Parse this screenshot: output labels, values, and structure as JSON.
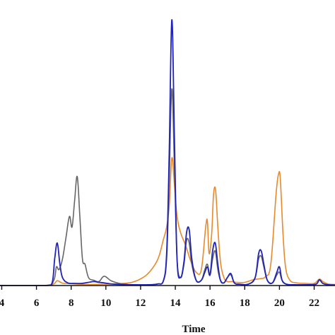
{
  "chart_data": {
    "type": "line",
    "xlabel": "Time",
    "ylabel": "",
    "xlim": [
      3.9,
      23.2
    ],
    "ylim": [
      0,
      100
    ],
    "xticks": [
      4,
      6,
      8,
      10,
      12,
      14,
      16,
      18,
      20,
      22
    ],
    "tick_labels": [
      "4",
      "6",
      "8",
      "10",
      "12",
      "14",
      "16",
      "18",
      "20",
      "22"
    ],
    "grid": false,
    "legend": "none",
    "series": [
      {
        "color": "#e8892b",
        "x": [
          3.9,
          6.5,
          7.0,
          7.2,
          7.5,
          8.0,
          8.5,
          9.0,
          10.0,
          11.0,
          11.5,
          12.0,
          12.5,
          13.0,
          13.3,
          13.5,
          13.65,
          13.8,
          13.95,
          14.1,
          14.3,
          14.6,
          14.9,
          15.2,
          15.5,
          15.75,
          15.85,
          15.95,
          16.1,
          16.2,
          16.32,
          16.45,
          16.6,
          16.8,
          17.0,
          17.25,
          17.5,
          18.0,
          18.5,
          18.9,
          19.2,
          19.5,
          19.8,
          19.95,
          20.05,
          20.2,
          20.35,
          20.6,
          21.0,
          21.5,
          22.0,
          22.3,
          22.5,
          22.8,
          23.2
        ],
        "y": [
          0,
          0,
          0.6,
          1.8,
          0.9,
          0.7,
          0.5,
          0.4,
          0.5,
          0.8,
          1.2,
          2.5,
          5,
          10,
          17,
          22,
          30,
          48,
          38,
          26,
          20,
          15,
          9,
          5,
          6,
          22,
          24,
          12,
          20,
          34,
          36,
          22,
          9,
          3,
          1.5,
          1.5,
          1.2,
          1.2,
          2.2,
          2.6,
          3.4,
          8,
          34,
          42,
          40,
          20,
          7,
          2,
          1,
          0.8,
          0.8,
          2.4,
          1.5,
          0.6,
          0.4
        ]
      },
      {
        "color": "#666666",
        "x": [
          3.9,
          6.5,
          7.0,
          7.15,
          7.3,
          7.5,
          7.7,
          7.9,
          8.05,
          8.2,
          8.35,
          8.5,
          8.65,
          8.8,
          9.0,
          9.3,
          9.6,
          9.9,
          10.3,
          10.8,
          11.5,
          12.5,
          13.0,
          13.3,
          13.5,
          13.65,
          13.8,
          13.95,
          14.1,
          14.3,
          14.5,
          14.65,
          14.8,
          14.95,
          15.2,
          15.5,
          15.7,
          15.85,
          16.0,
          16.15,
          16.3,
          16.45,
          16.6,
          16.8,
          17.0,
          17.2,
          17.4,
          17.7,
          18.2,
          18.6,
          18.8,
          18.95,
          19.1,
          19.3,
          19.6,
          19.85,
          20.0,
          20.15,
          20.4,
          20.8,
          21.5,
          22.1,
          22.3,
          22.5,
          22.8,
          23.2
        ],
        "y": [
          0,
          0,
          2,
          7,
          6,
          10,
          18,
          26,
          22,
          32,
          41,
          26,
          10,
          8,
          3,
          2,
          1.5,
          3.5,
          1.8,
          0.8,
          0.3,
          0.3,
          0.6,
          1.5,
          10,
          40,
          74,
          44,
          10,
          3,
          8,
          17,
          16,
          8,
          2,
          2,
          6,
          8,
          4,
          10,
          13,
          6,
          2,
          1,
          3,
          4,
          1,
          0.5,
          0.5,
          3,
          10,
          11,
          7,
          2,
          1,
          4,
          5,
          2,
          0.5,
          0.3,
          0.3,
          0.5,
          2,
          0.8,
          0.3,
          0.2
        ]
      },
      {
        "color": "#1f23b8",
        "x": [
          3.9,
          6.5,
          6.9,
          7.05,
          7.2,
          7.35,
          7.5,
          7.8,
          8.2,
          8.6,
          9.0,
          9.3,
          9.6,
          9.9,
          10.3,
          10.8,
          11.5,
          12.5,
          13.0,
          13.3,
          13.5,
          13.65,
          13.8,
          13.95,
          14.1,
          14.3,
          14.5,
          14.65,
          14.8,
          14.95,
          15.2,
          15.5,
          15.7,
          15.85,
          16.0,
          16.15,
          16.3,
          16.45,
          16.6,
          16.8,
          17.0,
          17.2,
          17.4,
          17.7,
          18.2,
          18.6,
          18.8,
          18.95,
          19.1,
          19.3,
          19.6,
          19.85,
          20.0,
          20.15,
          20.4,
          20.8,
          21.5,
          22.1,
          22.3,
          22.5,
          22.8,
          23.2
        ],
        "y": [
          0,
          0,
          1,
          10,
          16,
          8,
          3,
          1,
          0.8,
          0.8,
          1.2,
          1.5,
          1.2,
          1,
          0.6,
          0.4,
          0.3,
          0.3,
          0.6,
          1.5,
          12,
          50,
          100,
          55,
          10,
          3,
          9,
          20,
          21,
          10,
          2,
          2,
          5,
          7,
          4,
          13,
          16,
          8,
          2,
          1,
          3,
          4.5,
          1,
          0.5,
          0.5,
          3,
          12,
          13,
          8,
          2,
          1,
          5,
          7,
          2,
          0.5,
          0.3,
          0.3,
          0.5,
          2.2,
          0.8,
          0.3,
          0.2
        ]
      }
    ]
  }
}
